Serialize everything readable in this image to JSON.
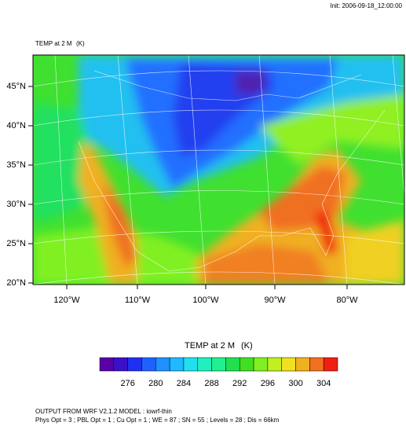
{
  "header": {
    "init": "Init: 2006-09-18_12:00:00"
  },
  "map": {
    "field_label": "TEMP at 2 M",
    "units": "(K)",
    "lat_labels": [
      "45°N",
      "40°N",
      "35°N",
      "30°N",
      "25°N",
      "20°N"
    ],
    "lon_labels": [
      "120°W",
      "110°W",
      "100°W",
      "90°W",
      "80°W"
    ]
  },
  "colorbar": {
    "colors": [
      "#5a00a8",
      "#3c10c8",
      "#2030f0",
      "#2060ff",
      "#2090ff",
      "#20b8ff",
      "#20e0f0",
      "#20f0c0",
      "#20f090",
      "#20e050",
      "#40e020",
      "#80f020",
      "#c0f020",
      "#f0e020",
      "#f0b020",
      "#f07020",
      "#f02010"
    ],
    "ticks": [
      276,
      280,
      284,
      288,
      292,
      296,
      300,
      304
    ]
  },
  "footer": {
    "line1": "OUTPUT FROM WRF V2.1.2 MODEL : iowrf-thin",
    "line2": "Phys Opt = 3 ; PBL Opt = 1 ; Cu Opt = 1 ; WE = 87 ; SN = 55 ; Levels = 28 ; Dis = 66km"
  }
}
